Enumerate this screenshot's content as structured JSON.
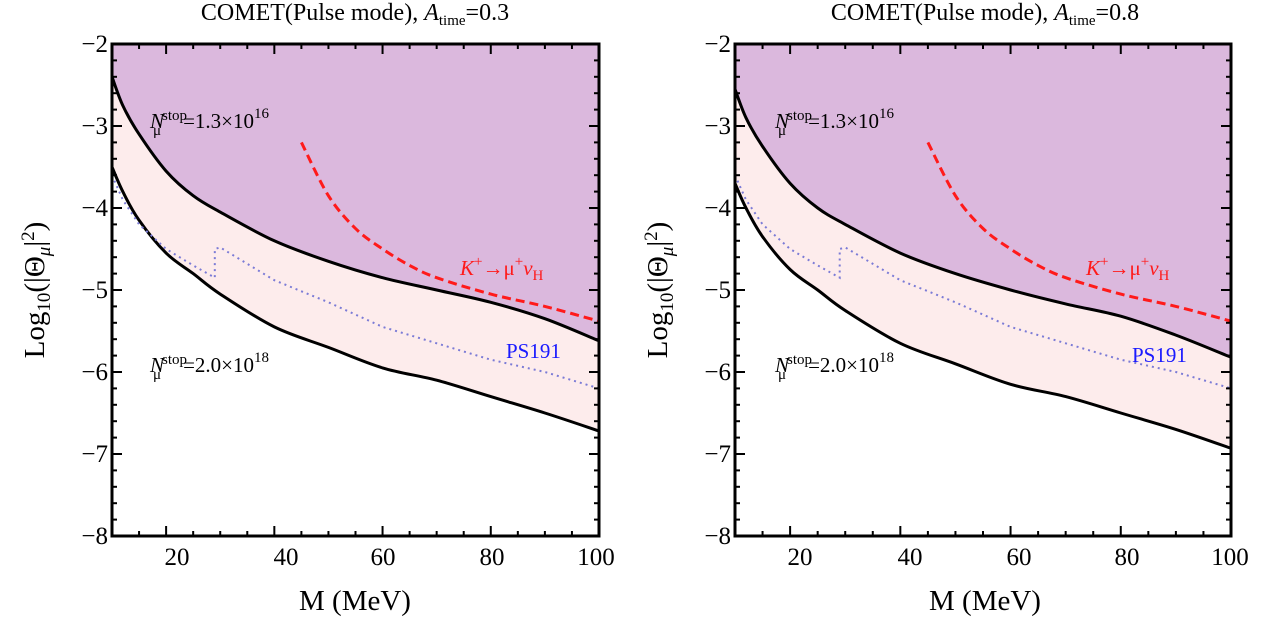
{
  "colors": {
    "excluded_region": "#dbb8dd",
    "band_region": "#fdecec",
    "boundary": "#000000",
    "kaon_line": "#ff1a1a",
    "ps191_line": "#7b7bd6",
    "ps191_label": "#1a1aff"
  },
  "chart_data": [
    {
      "type": "area",
      "title": {
        "prefix": "COMET(Pulse mode), ",
        "var": "A",
        "sub": "time",
        "suffix": "=0.3"
      },
      "xlabel": "M (MeV)",
      "ylabel": {
        "prefix": "Log",
        "sub": "10",
        "mid": "(|Θ",
        "sub2": "μ",
        "suffix": "|",
        "sup": "2",
        "close": ")"
      },
      "xlim": [
        10,
        100
      ],
      "ylim": [
        -8,
        -2
      ],
      "xticks": [
        20,
        40,
        60,
        80,
        100
      ],
      "yticks": [
        -2,
        -3,
        -4,
        -5,
        -6,
        -7,
        -8
      ],
      "ytick_labels": [
        "−2",
        "−3",
        "−4",
        "−5",
        "−6",
        "−7",
        "−8"
      ],
      "annotations": {
        "upper_curve": {
          "base": "N",
          "sub": "μ",
          "sup": "stop",
          "value": "=1.3×10",
          "exp": "16"
        },
        "lower_curve": {
          "base": "N",
          "sub": "μ",
          "sup": "stop",
          "value": "=2.0×10",
          "exp": "18"
        },
        "kaon": {
          "text": "K",
          "sup": "+",
          "arrow": "→μ",
          "sup2": "+",
          "nu": "ν",
          "sub": "H"
        },
        "ps191": "PS191"
      },
      "series": [
        {
          "role": "upper_boundary",
          "x": [
            10,
            12,
            15,
            20,
            25,
            30,
            40,
            50,
            60,
            70,
            80,
            90,
            100
          ],
          "y": [
            -2.4,
            -2.75,
            -3.1,
            -3.55,
            -3.85,
            -4.05,
            -4.4,
            -4.65,
            -4.85,
            -5.0,
            -5.15,
            -5.35,
            -5.62
          ]
        },
        {
          "role": "lower_boundary",
          "x": [
            10,
            12,
            15,
            20,
            25,
            30,
            40,
            50,
            60,
            70,
            80,
            90,
            100
          ],
          "y": [
            -3.5,
            -3.8,
            -4.15,
            -4.55,
            -4.8,
            -5.05,
            -5.45,
            -5.7,
            -5.95,
            -6.1,
            -6.3,
            -6.5,
            -6.72
          ]
        },
        {
          "role": "kaon_dashed",
          "x": [
            45,
            50,
            55,
            60,
            65,
            70,
            80,
            90,
            100
          ],
          "y": [
            -3.2,
            -3.85,
            -4.25,
            -4.5,
            -4.7,
            -4.85,
            -5.05,
            -5.2,
            -5.38
          ]
        },
        {
          "role": "ps191_dotted",
          "x": [
            10,
            12,
            15,
            20,
            25,
            29,
            29,
            30,
            40,
            50,
            60,
            70,
            80,
            90,
            100
          ],
          "y": [
            -3.6,
            -3.9,
            -4.2,
            -4.5,
            -4.7,
            -4.85,
            -4.5,
            -4.48,
            -4.88,
            -5.15,
            -5.45,
            -5.65,
            -5.85,
            -6.0,
            -6.2
          ]
        }
      ]
    },
    {
      "type": "area",
      "title": {
        "prefix": "COMET(Pulse mode), ",
        "var": "A",
        "sub": "time",
        "suffix": "=0.8"
      },
      "xlabel": "M (MeV)",
      "ylabel": {
        "prefix": "Log",
        "sub": "10",
        "mid": "(|Θ",
        "sub2": "μ",
        "suffix": "|",
        "sup": "2",
        "close": ")"
      },
      "xlim": [
        10,
        100
      ],
      "ylim": [
        -8,
        -2
      ],
      "xticks": [
        20,
        40,
        60,
        80,
        100
      ],
      "yticks": [
        -2,
        -3,
        -4,
        -5,
        -6,
        -7,
        -8
      ],
      "ytick_labels": [
        "−2",
        "−3",
        "−4",
        "−5",
        "−6",
        "−7",
        "−8"
      ],
      "annotations": {
        "upper_curve": {
          "base": "N",
          "sub": "μ",
          "sup": "stop",
          "value": "=1.3×10",
          "exp": "16"
        },
        "lower_curve": {
          "base": "N",
          "sub": "μ",
          "sup": "stop",
          "value": "=2.0×10",
          "exp": "18"
        },
        "kaon": {
          "text": "K",
          "sup": "+",
          "arrow": "→μ",
          "sup2": "+",
          "nu": "ν",
          "sub": "H"
        },
        "ps191": "PS191"
      },
      "series": [
        {
          "role": "upper_boundary",
          "x": [
            10,
            12,
            15,
            20,
            25,
            30,
            40,
            50,
            60,
            70,
            80,
            90,
            100
          ],
          "y": [
            -2.55,
            -2.9,
            -3.25,
            -3.7,
            -4.0,
            -4.2,
            -4.55,
            -4.8,
            -5.0,
            -5.17,
            -5.32,
            -5.55,
            -5.82
          ]
        },
        {
          "role": "lower_boundary",
          "x": [
            10,
            12,
            15,
            20,
            25,
            30,
            40,
            50,
            60,
            70,
            80,
            90,
            100
          ],
          "y": [
            -3.7,
            -4.0,
            -4.35,
            -4.75,
            -5.0,
            -5.25,
            -5.65,
            -5.9,
            -6.15,
            -6.3,
            -6.5,
            -6.7,
            -6.93
          ]
        },
        {
          "role": "kaon_dashed",
          "x": [
            45,
            50,
            55,
            60,
            65,
            70,
            80,
            90,
            100
          ],
          "y": [
            -3.2,
            -3.85,
            -4.25,
            -4.5,
            -4.7,
            -4.85,
            -5.05,
            -5.2,
            -5.38
          ]
        },
        {
          "role": "ps191_dotted",
          "x": [
            10,
            12,
            15,
            20,
            25,
            29,
            29,
            30,
            40,
            50,
            60,
            70,
            80,
            90,
            100
          ],
          "y": [
            -3.6,
            -3.9,
            -4.2,
            -4.5,
            -4.7,
            -4.85,
            -4.5,
            -4.48,
            -4.88,
            -5.15,
            -5.45,
            -5.65,
            -5.85,
            -6.0,
            -6.2
          ]
        }
      ]
    }
  ]
}
